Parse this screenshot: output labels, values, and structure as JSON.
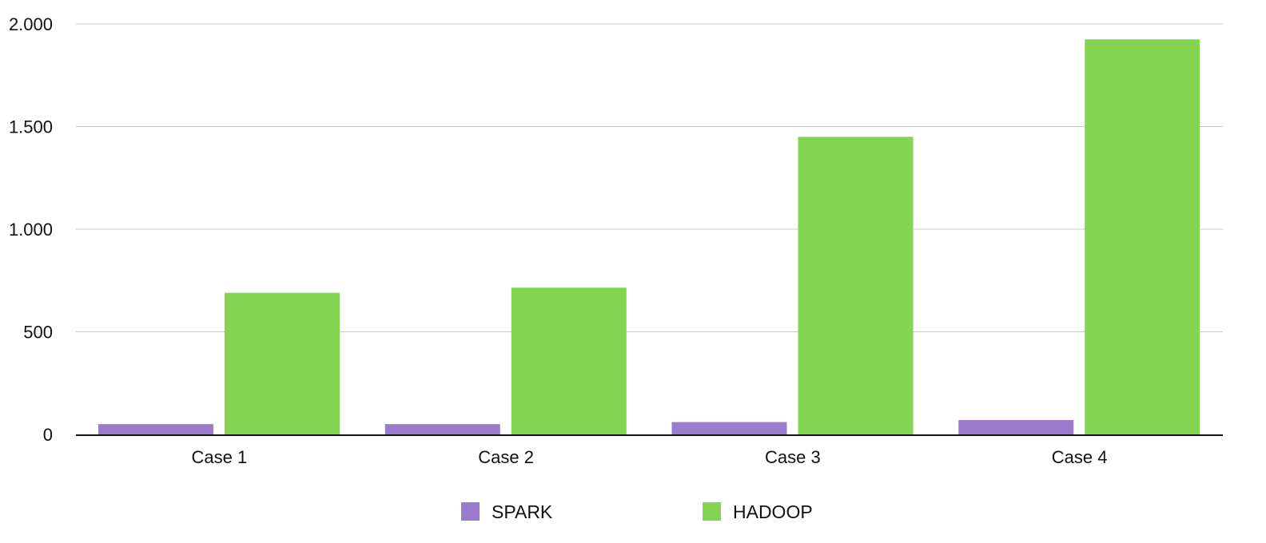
{
  "chart_data": {
    "type": "bar",
    "title": "",
    "xlabel": "",
    "ylabel": "",
    "categories": [
      "Case 1",
      "Case 2",
      "Case 3",
      "Case 4"
    ],
    "series": [
      {
        "name": "SPARK",
        "values": [
          50,
          50,
          60,
          70
        ],
        "color": "#9b7bcd"
      },
      {
        "name": "HADOOP",
        "values": [
          690,
          715,
          1450,
          1925
        ],
        "color": "#83d551"
      }
    ],
    "ylim": [
      0,
      2000
    ],
    "yticks": [
      0,
      500,
      1000,
      1500,
      2000
    ],
    "ytick_labels": [
      "0",
      "500",
      "1.000",
      "1.500",
      "2.000"
    ],
    "grid": true,
    "legend_position": "bottom-center"
  }
}
